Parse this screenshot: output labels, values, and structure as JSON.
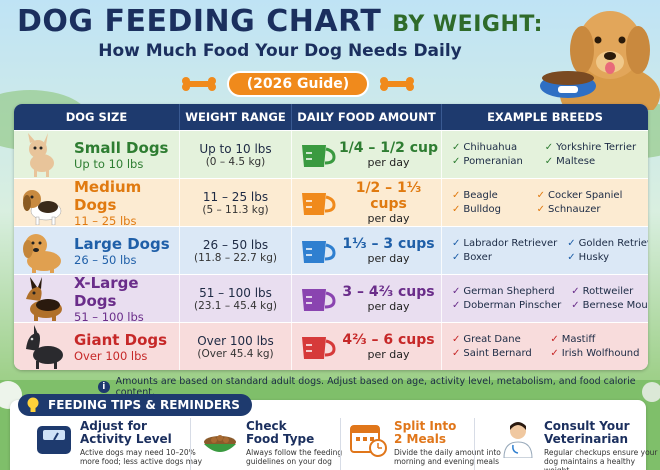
{
  "header": {
    "title_main": "DOG FEEDING CHART",
    "title_by": "BY WEIGHT:",
    "subtitle": "How Much Food Your Dog Needs Daily",
    "guide": "(2026 Guide)"
  },
  "table": {
    "headers": [
      "DOG SIZE",
      "WEIGHT RANGE",
      "DAILY FOOD AMOUNT",
      "EXAMPLE BREEDS"
    ],
    "rows": [
      {
        "name": "Small Dogs",
        "range": "Up to 10 lbs",
        "weight": "Up to 10 lbs",
        "weight_kg": "(0 – 4.5 kg)",
        "food": "1/4 – 1/2 cup",
        "per": "per day",
        "breeds": [
          "Chihuahua",
          "Yorkshire Terrier",
          "Pomeranian",
          "Maltese"
        ],
        "color": "#2e7d32",
        "bg": "#e4f2dc",
        "cup": "#3a9a40"
      },
      {
        "name": "Medium Dogs",
        "range": "11 – 25 lbs",
        "weight": "11 – 25 lbs",
        "weight_kg": "(5 – 11.3 kg)",
        "food": "1/2 – 1⅓ cups",
        "per": "per day",
        "breeds": [
          "Beagle",
          "Cocker Spaniel",
          "Bulldog",
          "Schnauzer"
        ],
        "color": "#e07a10",
        "bg": "#fcebd2",
        "cup": "#f08a1c"
      },
      {
        "name": "Large Dogs",
        "range": "26 – 50 lbs",
        "weight": "26 – 50 lbs",
        "weight_kg": "(11.8 – 22.7 kg)",
        "food": "1⅓ – 3 cups",
        "per": "per day",
        "breeds": [
          "Labrador Retriever",
          "Golden Retriever",
          "Boxer",
          "Husky"
        ],
        "color": "#1f5fa8",
        "bg": "#dbe8f6",
        "cup": "#2f7fd0"
      },
      {
        "name": "X-Large Dogs",
        "range": "51 – 100 lbs",
        "weight": "51 – 100 lbs",
        "weight_kg": "(23.1 – 45.4 kg)",
        "food": "3 – 4⅔ cups",
        "per": "per day",
        "breeds": [
          "German Shepherd",
          "Rottweiler",
          "Doberman Pinscher",
          "Bernese Mountain Dog"
        ],
        "color": "#6a2d8a",
        "bg": "#e9def0",
        "cup": "#8a44b0"
      },
      {
        "name": "Giant Dogs",
        "range": "Over 100 lbs",
        "weight": "Over 100 lbs",
        "weight_kg": "(Over 45.4 kg)",
        "food": "4⅔ – 6 cups",
        "per": "per day",
        "breeds": [
          "Great Dane",
          "Mastiff",
          "Saint Bernard",
          "Irish Wolfhound"
        ],
        "color": "#c62828",
        "bg": "#f8dcdc",
        "cup": "#d63a3a"
      }
    ]
  },
  "note": "Amounts are based on standard adult dogs. Adjust based on age, activity level, metabolism, and food calorie content.",
  "tips": {
    "header": "FEEDING TIPS & REMINDERS",
    "items": [
      {
        "title1": "Adjust for",
        "title2": "Activity Level",
        "text1": "Active dogs may need 10–20%",
        "text2": "more food; less active dogs may",
        "icon": "scale-icon"
      },
      {
        "title1": "Check",
        "title2": "Food Type",
        "text1": "Always follow the feeding",
        "text2": "guidelines on your dog",
        "icon": "food-bowl-icon"
      },
      {
        "title1": "Split Into",
        "title2": "2 Meals",
        "text1": "Divide the daily amount into",
        "text2": "morning and evening meals",
        "icon": "calendar-clock-icon"
      },
      {
        "title1": "Consult Your",
        "title2": "Veterinarian",
        "text1": "Regular checkups ensure your",
        "text2": "dog maintains a healthy weight",
        "icon": "veterinarian-icon"
      }
    ]
  }
}
